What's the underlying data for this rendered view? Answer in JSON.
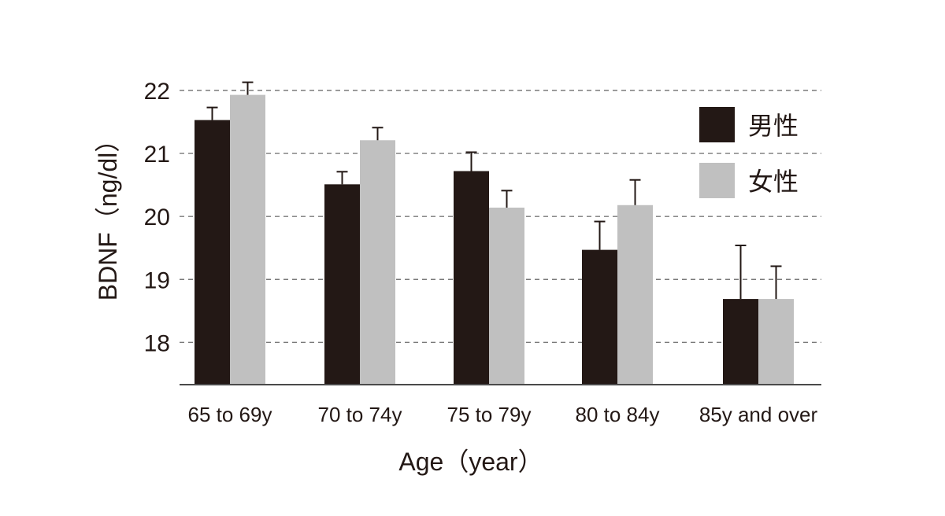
{
  "chart_data": {
    "type": "bar",
    "xlabel": "Age（year）",
    "ylabel": "BDNF（ng/dl）",
    "ylim": [
      17.33,
      22
    ],
    "yticks": [
      "18",
      "19",
      "20",
      "21",
      "22"
    ],
    "grid": true,
    "legend_position": "top-right",
    "categories": [
      "65 to 69y",
      "70 to 74y",
      "75 to 79y",
      "80 to 84y",
      "85y and over"
    ],
    "series": [
      {
        "name": "男性",
        "color": "#231815",
        "values": [
          21.53,
          20.51,
          20.72,
          19.47,
          18.69
        ],
        "errors": [
          0.2,
          0.2,
          0.3,
          0.45,
          0.85
        ]
      },
      {
        "name": "女性",
        "color": "#c0c0c0",
        "values": [
          21.93,
          21.21,
          20.14,
          20.18,
          18.69
        ],
        "errors": [
          0.2,
          0.2,
          0.27,
          0.4,
          0.52
        ]
      }
    ]
  }
}
